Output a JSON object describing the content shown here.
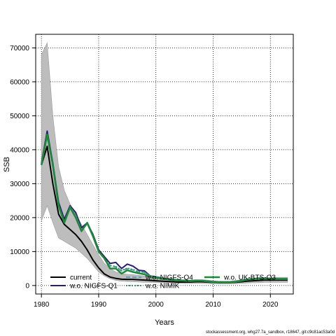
{
  "chart_data": {
    "type": "line",
    "xlabel": "Years",
    "ylabel": "SSB",
    "xlim": [
      1979,
      2024
    ],
    "ylim": [
      -2500,
      74000
    ],
    "x_ticks": [
      1980,
      1990,
      2000,
      2010,
      2020
    ],
    "y_ticks": [
      0,
      10000,
      20000,
      30000,
      40000,
      50000,
      60000,
      70000
    ],
    "grid": true,
    "legend_position": "bottom",
    "credit": "stockassessment.org, whg27.7a_sandbox, r18647, git:c9c81ac53a0d",
    "x": [
      1980,
      1981,
      1982,
      1983,
      1984,
      1985,
      1986,
      1987,
      1988,
      1989,
      1990,
      1991,
      1992,
      1993,
      1994,
      1995,
      1996,
      1997,
      1998,
      1999,
      2000,
      2001,
      2002,
      2003,
      2004,
      2005,
      2006,
      2007,
      2008,
      2009,
      2010,
      2011,
      2012,
      2013,
      2014,
      2015,
      2016,
      2017,
      2018,
      2019,
      2020,
      2021,
      2022,
      2023
    ],
    "band": {
      "upper": [
        68000,
        71500,
        50000,
        35000,
        28000,
        24000,
        21000,
        18000,
        15000,
        12000,
        9000,
        6500,
        5000,
        4000,
        3500,
        3300,
        3200,
        3000,
        2800,
        2600,
        2400,
        2200,
        2000,
        1800,
        1700,
        1600,
        1600,
        1700,
        1700,
        1600,
        1400,
        1300,
        1300,
        1300,
        1500,
        1700,
        1900,
        2000,
        2100,
        2200,
        2300,
        2400,
        2400,
        2400
      ],
      "lower": [
        19000,
        23500,
        18500,
        14000,
        13000,
        12000,
        11000,
        9500,
        8000,
        6000,
        4000,
        2800,
        2000,
        1500,
        1300,
        1200,
        1100,
        1000,
        950,
        900,
        850,
        800,
        750,
        700,
        650,
        600,
        600,
        650,
        650,
        600,
        550,
        500,
        500,
        500,
        550,
        650,
        750,
        800,
        850,
        900,
        900,
        900,
        900,
        900
      ]
    },
    "series": [
      {
        "name": "current",
        "color": "#000000",
        "width": 2,
        "dash": "",
        "values": [
          35500,
          41000,
          30000,
          21000,
          18000,
          16500,
          15000,
          13000,
          10500,
          7500,
          5200,
          3400,
          2500,
          2100,
          1850,
          1800,
          1800,
          1700,
          1600,
          1500,
          1400,
          1300,
          1200,
          1100,
          1000,
          1000,
          1000,
          1100,
          1100,
          1000,
          900,
          850,
          850,
          850,
          950,
          1100,
          1300,
          1400,
          1500,
          1600,
          1600,
          1600,
          1600,
          1600
        ]
      },
      {
        "name": "w.o. NIGFS-Q1",
        "color": "#2a1f6e",
        "width": 2,
        "dash": "",
        "values": [
          36000,
          45500,
          36000,
          24500,
          19500,
          23500,
          21500,
          17000,
          18500,
          15000,
          10500,
          8500,
          6500,
          6800,
          5000,
          6300,
          5700,
          4500,
          4300,
          2800,
          2600,
          2200,
          2000,
          1800,
          1600,
          1500,
          1400,
          1500,
          1500,
          1300,
          1100,
          1000,
          1000,
          1000,
          1200,
          1500,
          1900,
          2000,
          2200,
          2100,
          2100,
          2000,
          2000,
          2000
        ]
      },
      {
        "name": "w.o. NIGFS-Q4",
        "color": "#5aa0b8",
        "width": 2,
        "dash": "6,3",
        "values": [
          35500,
          44000,
          35000,
          23500,
          18500,
          23000,
          20500,
          16200,
          18200,
          14500,
          10000,
          7800,
          5800,
          5500,
          4300,
          5000,
          4600,
          4000,
          3900,
          2700,
          2500,
          2100,
          1900,
          1700,
          1500,
          1450,
          1350,
          1450,
          1450,
          1250,
          1050,
          950,
          950,
          950,
          1150,
          1450,
          1800,
          1900,
          2100,
          2000,
          2000,
          1950,
          1950,
          1950
        ]
      },
      {
        "name": "w.o. NIMIK",
        "color": "#3d8f7a",
        "width": 2,
        "dash": "2,2",
        "values": [
          35500,
          44500,
          35500,
          23800,
          18600,
          23200,
          20800,
          16300,
          18300,
          14600,
          10100,
          7900,
          5900,
          5600,
          4400,
          5100,
          4700,
          4100,
          3950,
          2750,
          2550,
          2150,
          1950,
          1750,
          1550,
          1470,
          1380,
          1470,
          1470,
          1270,
          1070,
          970,
          970,
          970,
          1170,
          1470,
          1830,
          1930,
          2130,
          2030,
          2030,
          1980,
          1980,
          1980
        ]
      },
      {
        "name": "w.o. UK-BTS-Q3",
        "color": "#1d8a3a",
        "width": 2.5,
        "dash": "",
        "values": [
          35500,
          44500,
          35500,
          23500,
          18500,
          23000,
          20000,
          16000,
          18500,
          14500,
          10000,
          8000,
          5000,
          5000,
          3500,
          4500,
          4000,
          3600,
          3300,
          2500,
          2300,
          2000,
          1800,
          1600,
          1450,
          1400,
          1300,
          1400,
          1400,
          1200,
          1000,
          900,
          900,
          900,
          1100,
          1400,
          1750,
          1850,
          2050,
          1950,
          1950,
          1900,
          1900,
          1900
        ]
      }
    ]
  }
}
